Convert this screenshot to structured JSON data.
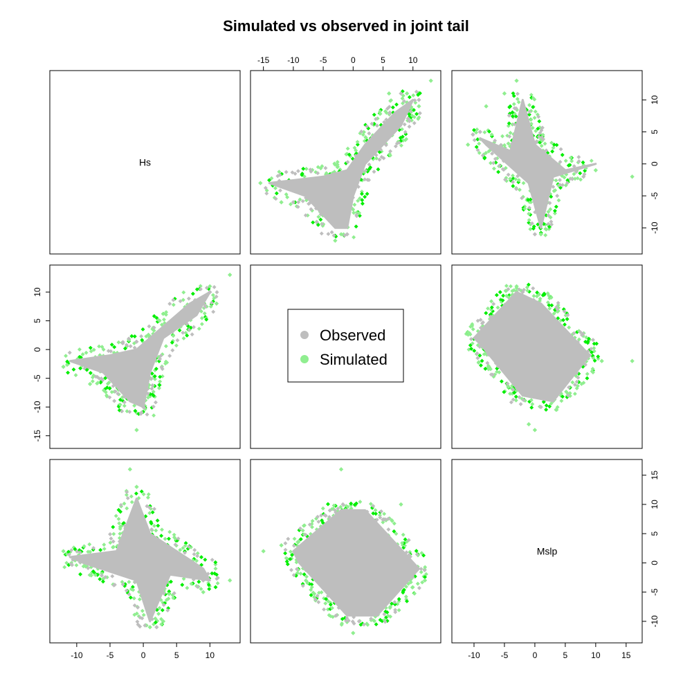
{
  "chart_data": {
    "type": "scatter",
    "title": "Simulated vs observed in joint tail",
    "variables": [
      "Hs",
      "",
      "Mslp"
    ],
    "legend": {
      "placement": "center",
      "entries": [
        {
          "name": "Observed",
          "color": "#bebebe"
        },
        {
          "name": "Simulated",
          "color": "#90ee90"
        }
      ]
    },
    "series_colors": {
      "observed": "#bebebe",
      "simulated": "#90ee90",
      "simulated_dense": "#00ee00"
    },
    "axes": {
      "var1": {
        "range": [
          -13,
          13.5
        ],
        "ticks": [
          -10,
          -5,
          0,
          5,
          10
        ]
      },
      "var2": {
        "range": [
          -16,
          13.5
        ],
        "ticks": [
          -15,
          -10,
          -5,
          0,
          5,
          10
        ]
      },
      "var3": {
        "range": [
          -12.5,
          16.5
        ],
        "ticks": [
          -10,
          -5,
          0,
          5,
          10,
          15
        ]
      }
    },
    "panels": [
      {
        "row": 1,
        "col": 2,
        "x": "var2",
        "y": "var1",
        "shape": "diagonal-x",
        "core": [
          [
            -14,
            -3
          ],
          [
            -5,
            -2
          ],
          [
            -1,
            -1
          ],
          [
            2,
            3
          ],
          [
            7,
            8
          ],
          [
            10,
            10
          ],
          [
            8,
            6
          ],
          [
            2,
            0
          ],
          [
            0,
            -5
          ],
          [
            -1,
            -10
          ],
          [
            -3,
            -10
          ],
          [
            -8,
            -5
          ]
        ],
        "sim_points": [
          [
            -15.5,
            -3
          ],
          [
            13,
            13
          ],
          [
            -12,
            -6
          ],
          [
            -2,
            -11
          ],
          [
            9,
            11
          ],
          [
            11,
            9
          ],
          [
            -3,
            -12
          ],
          [
            6,
            11
          ]
        ],
        "obs_points": [
          [
            11,
            10
          ],
          [
            8,
            11
          ],
          [
            -10,
            -6
          ],
          [
            -1,
            -11
          ]
        ]
      },
      {
        "row": 1,
        "col": 3,
        "x": "var3",
        "y": "var1",
        "shape": "star",
        "core": [
          [
            -9,
            4
          ],
          [
            -4,
            2
          ],
          [
            -2,
            10
          ],
          [
            0,
            3
          ],
          [
            5,
            -1
          ],
          [
            10,
            0
          ],
          [
            3,
            -2
          ],
          [
            1,
            -10
          ],
          [
            -1,
            -3
          ],
          [
            -8,
            3
          ]
        ],
        "sim_points": [
          [
            -11,
            3
          ],
          [
            16,
            -2
          ],
          [
            -3,
            13
          ],
          [
            1,
            -11
          ],
          [
            -8,
            9
          ],
          [
            10,
            -1
          ],
          [
            -5,
            11
          ]
        ],
        "obs_points": [
          [
            0,
            -11
          ],
          [
            -9,
            5
          ],
          [
            8,
            -2
          ]
        ]
      },
      {
        "row": 2,
        "col": 1,
        "x": "var1",
        "y": "var2",
        "shape": "diagonal-y",
        "core": [
          [
            -11,
            -2
          ],
          [
            -5,
            -1
          ],
          [
            -1,
            0
          ],
          [
            3,
            4
          ],
          [
            7,
            8
          ],
          [
            10,
            10
          ],
          [
            8,
            6
          ],
          [
            3,
            2
          ],
          [
            1,
            -4
          ],
          [
            0,
            -10
          ],
          [
            -2,
            -9
          ],
          [
            -6,
            -4
          ]
        ],
        "sim_points": [
          [
            13,
            13
          ],
          [
            -12,
            -3
          ],
          [
            -1,
            -14
          ],
          [
            10,
            11
          ],
          [
            -8,
            -6
          ],
          [
            11,
            8
          ]
        ],
        "obs_points": [
          [
            10,
            10
          ],
          [
            -10,
            -2
          ],
          [
            0,
            -10
          ]
        ]
      },
      {
        "row": 2,
        "col": 3,
        "x": "var3",
        "y": "var2",
        "shape": "square",
        "core": [
          [
            -10,
            2
          ],
          [
            -3,
            10
          ],
          [
            1,
            8
          ],
          [
            9,
            -1
          ],
          [
            3,
            -9
          ],
          [
            -2,
            -8
          ],
          [
            -9,
            1
          ]
        ],
        "sim_points": [
          [
            16,
            -2
          ],
          [
            -3,
            11
          ],
          [
            0,
            -14
          ],
          [
            -11,
            3
          ],
          [
            11,
            -2
          ],
          [
            -1,
            -13
          ]
        ],
        "obs_points": [
          [
            -2,
            10
          ],
          [
            1,
            -10
          ],
          [
            9,
            -1
          ]
        ]
      },
      {
        "row": 3,
        "col": 1,
        "x": "var1",
        "y": "var3",
        "shape": "star",
        "core": [
          [
            -11,
            1
          ],
          [
            -4,
            2
          ],
          [
            -1,
            11
          ],
          [
            1,
            5
          ],
          [
            9,
            -1
          ],
          [
            10,
            -3
          ],
          [
            4,
            -2
          ],
          [
            1,
            -10
          ],
          [
            -1,
            -3
          ],
          [
            -9,
            0
          ]
        ],
        "sim_points": [
          [
            -2,
            16
          ],
          [
            13,
            -3
          ],
          [
            -12,
            2
          ],
          [
            1,
            -11
          ],
          [
            -1,
            13
          ],
          [
            9,
            -5
          ],
          [
            3,
            -10
          ]
        ],
        "obs_points": [
          [
            -1,
            10
          ],
          [
            9,
            -3
          ],
          [
            2,
            -11
          ]
        ]
      },
      {
        "row": 3,
        "col": 2,
        "x": "var2",
        "y": "var3",
        "shape": "square",
        "core": [
          [
            -10,
            2
          ],
          [
            -2,
            9
          ],
          [
            2,
            9
          ],
          [
            11,
            -1
          ],
          [
            4,
            -9
          ],
          [
            -1,
            -9
          ],
          [
            -9,
            0
          ]
        ],
        "sim_points": [
          [
            -15,
            2
          ],
          [
            -2,
            16
          ],
          [
            12,
            -3
          ],
          [
            0,
            -12
          ],
          [
            -12,
            3
          ],
          [
            8,
            10
          ]
        ],
        "obs_points": [
          [
            -1,
            9
          ],
          [
            10,
            -2
          ],
          [
            1,
            -10
          ]
        ]
      }
    ]
  }
}
